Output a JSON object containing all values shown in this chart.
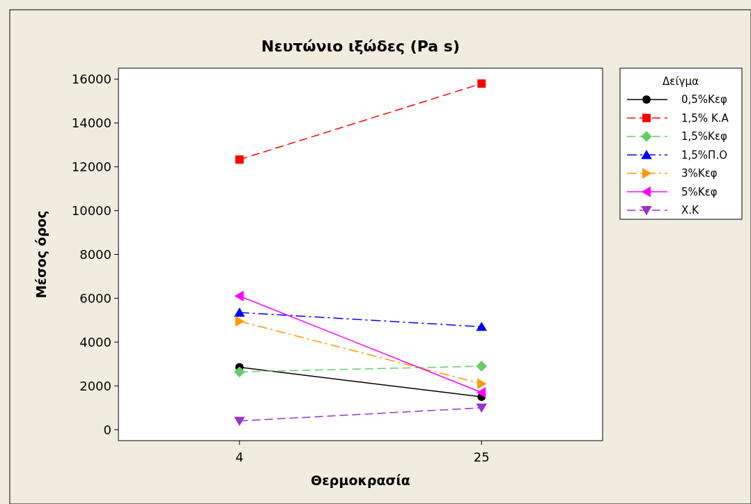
{
  "chart_data": {
    "type": "line",
    "title": "Νευτώνιο ιξώδες (Pa s)",
    "xlabel": "Θερμοκρασία",
    "ylabel": "Μέσος όρος",
    "legend_title": "Δείγμα",
    "legend": "right",
    "categories": [
      "4",
      "25"
    ],
    "ylim": [
      -500,
      16500
    ],
    "yticks": [
      0,
      2000,
      4000,
      6000,
      8000,
      10000,
      12000,
      14000,
      16000
    ],
    "series": [
      {
        "name": "0,5%Κεφ",
        "color": "#000000",
        "values": [
          2850,
          1500
        ],
        "marker": "circle",
        "line_style": "solid"
      },
      {
        "name": "1,5% Κ.Α",
        "color": "#ff0000",
        "values": [
          12330,
          15800
        ],
        "marker": "square",
        "line_style": "dashed"
      },
      {
        "name": "1,5%Κεφ",
        "color": "#66cc66",
        "values": [
          2640,
          2900
        ],
        "marker": "diamond",
        "line_style": "dashed"
      },
      {
        "name": "1,5%Π.Ο",
        "color": "#0000ff",
        "values": [
          5350,
          4700
        ],
        "marker": "triangle",
        "line_style": "dashdot"
      },
      {
        "name": "3%Κεφ",
        "color": "#ff9900",
        "values": [
          4950,
          2100
        ],
        "marker": "triangle-right",
        "line_style": "dashdot"
      },
      {
        "name": "5%Κεφ",
        "color": "#ff00ff",
        "values": [
          6100,
          1700
        ],
        "marker": "triangle-left",
        "line_style": "solid"
      },
      {
        "name": "Χ.Κ",
        "color": "#9933cc",
        "values": [
          400,
          1000
        ],
        "marker": "triangle-down",
        "line_style": "dashed"
      }
    ]
  }
}
